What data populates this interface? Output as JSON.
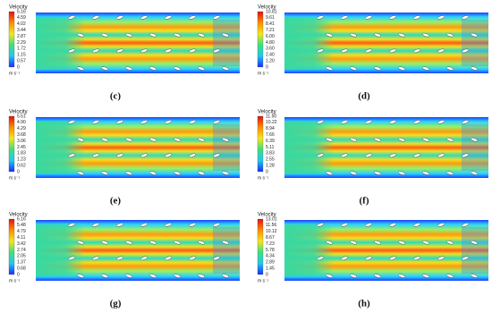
{
  "panels": [
    {
      "title": "Velocity",
      "ticks": [
        "5.16",
        "4.59",
        "4.02",
        "3.44",
        "2.87",
        "2.29",
        "1.72",
        "1.15",
        "0.57",
        "0"
      ],
      "unit": "m s⁻¹",
      "label": "(c)"
    },
    {
      "title": "Velocity",
      "ticks": [
        "10.81",
        "9.61",
        "8.41",
        "7.21",
        "6.00",
        "4.80",
        "3.60",
        "2.40",
        "1.20",
        "0"
      ],
      "unit": "m s⁻¹",
      "label": "(d)"
    },
    {
      "title": "Velocity",
      "ticks": [
        "5.51",
        "4.90",
        "4.29",
        "3.68",
        "3.06",
        "2.45",
        "1.83",
        "1.23",
        "0.62",
        "0"
      ],
      "unit": "m s⁻¹",
      "label": "(e)"
    },
    {
      "title": "Velocity",
      "ticks": [
        "11.50",
        "10.22",
        "8.94",
        "7.66",
        "6.39",
        "5.11",
        "3.83",
        "2.55",
        "1.28",
        "0"
      ],
      "unit": "m s⁻¹",
      "label": "(f)"
    },
    {
      "title": "Velocity",
      "ticks": [
        "6.16",
        "5.48",
        "4.79",
        "4.11",
        "3.42",
        "2.74",
        "2.05",
        "1.37",
        "0.68",
        "0"
      ],
      "unit": "m s⁻¹",
      "label": "(g)"
    },
    {
      "title": "Velocity",
      "ticks": [
        "13.01",
        "11.56",
        "10.12",
        "8.67",
        "7.23",
        "5.78",
        "4.34",
        "2.89",
        "1.45",
        "0"
      ],
      "unit": "m s⁻¹",
      "label": "(h)"
    }
  ]
}
